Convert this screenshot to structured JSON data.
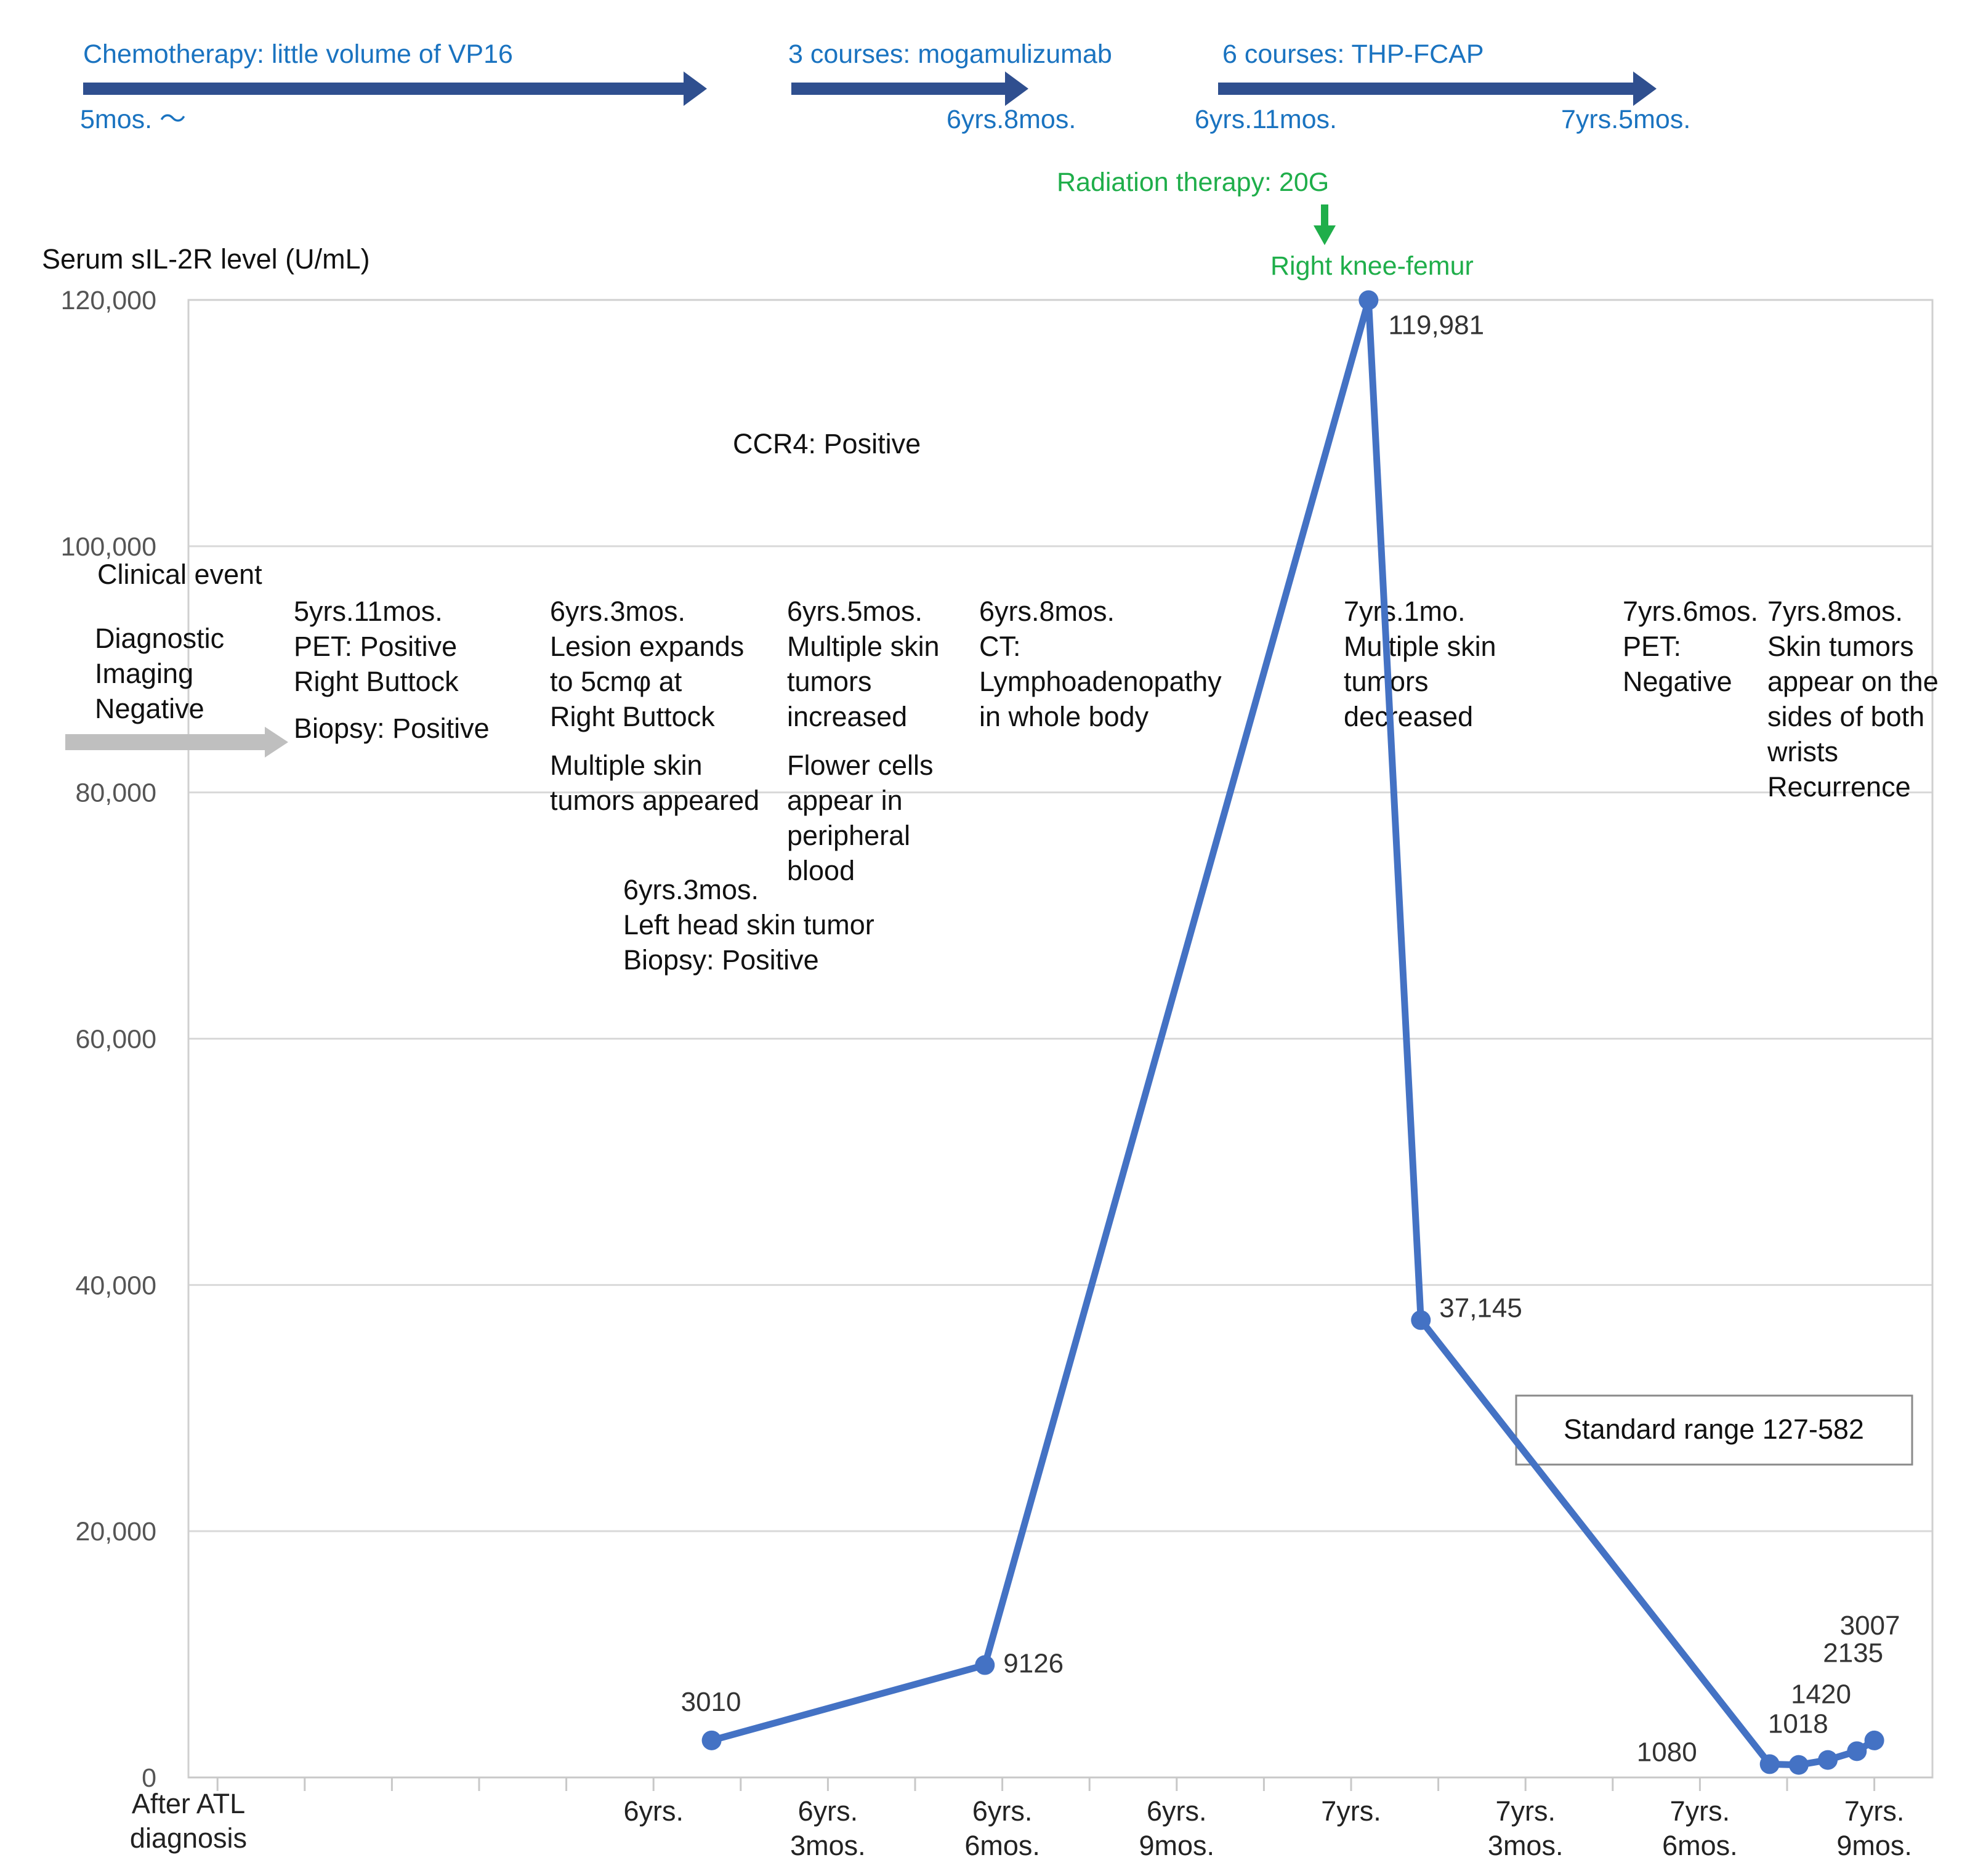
{
  "chart_data": {
    "type": "line",
    "ylabel": "Serum sIL-2R level (U/mL)",
    "xlabel": "After ATL diagnosis",
    "ylim": [
      0,
      120000
    ],
    "yticks": [
      0,
      20000,
      40000,
      60000,
      80000,
      100000,
      120000
    ],
    "ytick_labels": [
      "0",
      "20,000",
      "40,000",
      "60,000",
      "80,000",
      "100,000",
      "120,000"
    ],
    "xlim_months": [
      64,
      94
    ],
    "xticks_months": [
      72,
      75,
      78,
      81,
      84,
      87,
      90,
      93
    ],
    "xtick_labels": [
      "6yrs.",
      "6yrs.\n3mos.",
      "6yrs.\n6mos.",
      "6yrs.\n9mos.",
      "7yrs.",
      "7yrs.\n3mos.",
      "7yrs.\n6mos.",
      "7yrs.\n9mos."
    ],
    "series": [
      {
        "name": "Serum sIL-2R",
        "color": "#4472c4",
        "x_months": [
          73,
          77.7,
          84.3,
          85.2,
          91.2,
          91.7,
          92.2,
          92.7,
          93.0
        ],
        "values": [
          3010,
          9126,
          119981,
          37145,
          1080,
          1018,
          1420,
          2135,
          3007
        ],
        "labels": [
          "3010",
          "9126",
          "119,981",
          "37,145",
          "1080",
          "1018",
          "1420",
          "2135",
          "3007"
        ]
      }
    ],
    "legend_box": "Standard range 127-582",
    "treatments": [
      {
        "label": "Chemotherapy: little volume of VP16",
        "time": "5mos. ～"
      },
      {
        "label": "3 courses: mogamulizumab",
        "time": "6yrs.8mos."
      },
      {
        "label": "6 courses: THP-FCAP",
        "start": "6yrs.11mos.",
        "end": "7yrs.5mos."
      }
    ],
    "radiation": {
      "label": "Radiation therapy: 20G",
      "site": "Right knee-femur"
    },
    "ccr4": "CCR4: Positive",
    "clinical_event_title": "Clinical event",
    "diagnostic_imaging": [
      "Diagnostic",
      "Imaging",
      "Negative"
    ],
    "events": [
      [
        "5yrs.11mos.",
        "PET: Positive",
        "Right Buttock"
      ],
      [
        "Biopsy: Positive"
      ],
      [
        "6yrs.3mos.",
        "Lesion expands",
        "to 5cmφ at",
        "Right Buttock"
      ],
      [
        "Multiple skin",
        "tumors appeared"
      ],
      [
        "6yrs.3mos.",
        "Left head skin tumor",
        "Biopsy: Positive"
      ],
      [
        "6yrs.5mos.",
        "Multiple skin",
        "tumors",
        "increased"
      ],
      [
        "Flower cells",
        "appear in",
        "peripheral",
        "blood"
      ],
      [
        "6yrs.8mos.",
        "CT:",
        "Lymphoadenopathy",
        "in whole body"
      ],
      [
        "7yrs.1mo.",
        "Multiple skin",
        "tumors",
        "decreased"
      ],
      [
        "7yrs.6mos.",
        "PET:",
        "Negative"
      ],
      [
        "7yrs.8mos.",
        "Skin tumors",
        "appear on the",
        "sides of both",
        "wrists",
        "Recurrence"
      ]
    ]
  },
  "colors": {
    "treatment_text": "#1a73c0",
    "treatment_arrow": "#2f4f8f",
    "radiation": "#1fae4a",
    "line": "#4472c4",
    "grid": "#d9d9d9",
    "imaging_arrow": "#bfbfbf"
  }
}
